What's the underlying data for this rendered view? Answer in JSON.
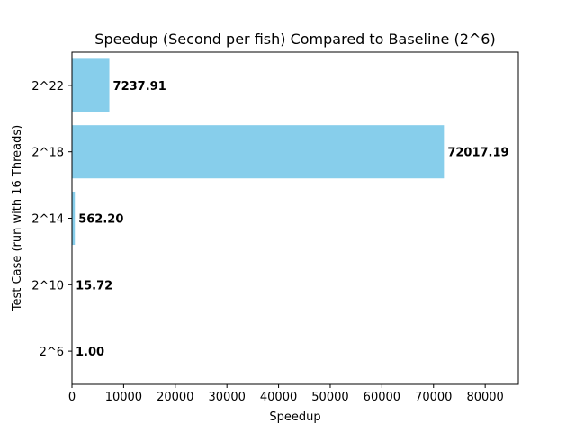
{
  "chart_data": {
    "type": "bar",
    "orientation": "horizontal",
    "title": "Speedup (Second per fish) Compared to Baseline (2^6)",
    "xlabel": "Speedup",
    "ylabel": "Test Case (run with 16 Threads)",
    "categories": [
      "2^6",
      "2^10",
      "2^14",
      "2^18",
      "2^22"
    ],
    "values": [
      1.0,
      15.72,
      562.2,
      72017.19,
      7237.91
    ],
    "value_labels": [
      "1.00",
      "15.72",
      "562.20",
      "72017.19",
      "7237.91"
    ],
    "xlim": [
      0,
      86420
    ],
    "xticks": [
      0,
      10000,
      20000,
      30000,
      40000,
      50000,
      60000,
      70000,
      80000
    ],
    "xtick_labels": [
      "0",
      "10000",
      "20000",
      "30000",
      "40000",
      "50000",
      "60000",
      "70000",
      "80000"
    ],
    "bar_color": "#87ceeb",
    "grid": false,
    "legend": "none"
  }
}
